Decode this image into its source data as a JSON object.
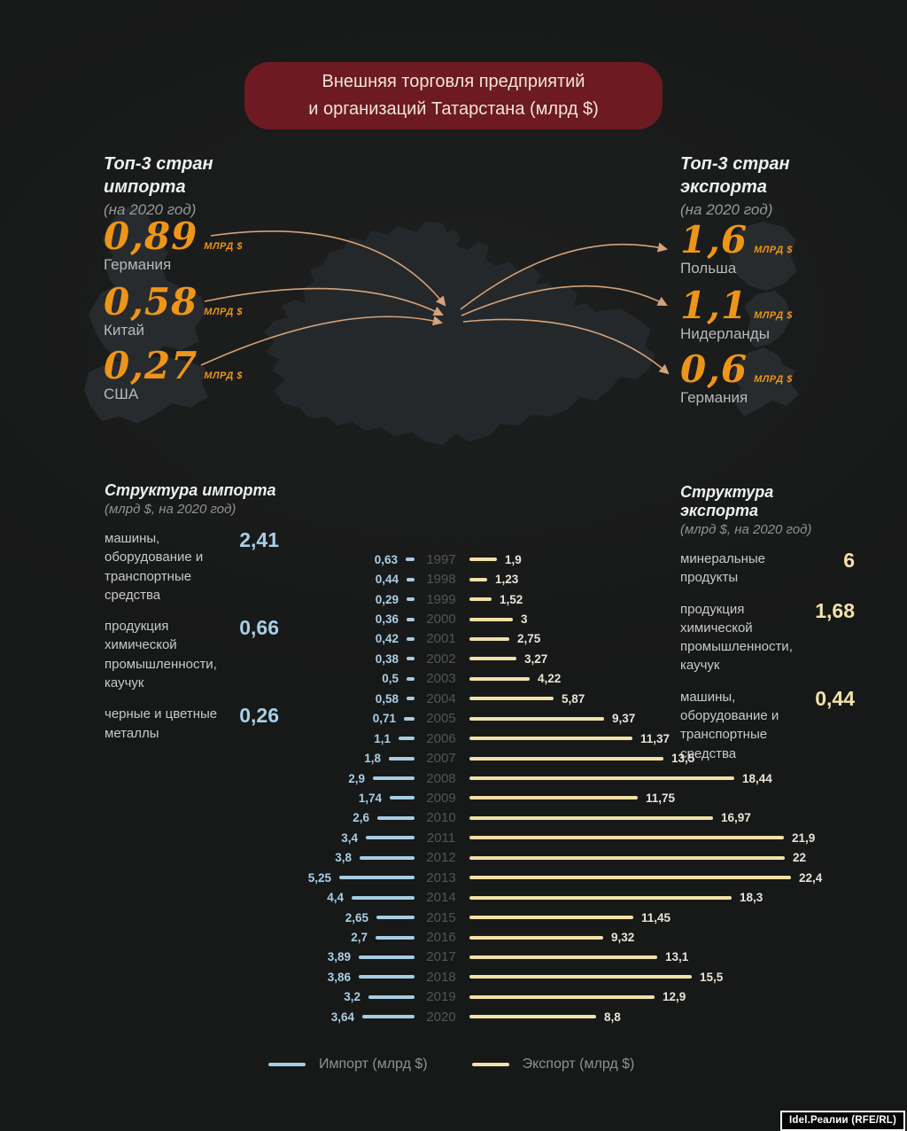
{
  "title": {
    "line1": "Внешняя торговля предприятий",
    "line2": "и организаций Татарстана (млрд $)"
  },
  "colors": {
    "background": "#1a1b1b",
    "banner": "#6d1a23",
    "accent_orange": "#ee9517",
    "arc": "#d4a27b",
    "import_blue": "#a5cde4",
    "export_yellow": "#f1e1a5",
    "map_fill": "#24282a"
  },
  "top_import": {
    "heading_line1": "Топ-3 стран",
    "heading_line2": "импорта",
    "subheading": "(на 2020 год)",
    "items": [
      {
        "value": "0,89",
        "unit": "млрд $",
        "country": "Германия"
      },
      {
        "value": "0,58",
        "unit": "млрд $",
        "country": "Китай"
      },
      {
        "value": "0,27",
        "unit": "млрд $",
        "country": "США"
      }
    ]
  },
  "top_export": {
    "heading_line1": "Топ-3 стран",
    "heading_line2": "экспорта",
    "subheading": "(на 2020 год)",
    "items": [
      {
        "value": "1,6",
        "unit": "млрд $",
        "country": "Польша"
      },
      {
        "value": "1,1",
        "unit": "млрд $",
        "country": "Нидерланды"
      },
      {
        "value": "0,6",
        "unit": "млрд $",
        "country": "Германия"
      }
    ]
  },
  "import_structure": {
    "heading": "Структура импорта",
    "subheading": "(млрд $, на 2020 год)",
    "items": [
      {
        "label": "машины, оборудование и транспортные средства",
        "value": "2,41"
      },
      {
        "label": "продукция химической промышленности, каучук",
        "value": "0,66"
      },
      {
        "label": "черные и цветные металлы",
        "value": "0,26"
      }
    ]
  },
  "export_structure": {
    "heading": "Структура экспорта",
    "subheading": "(млрд $, на 2020 год)",
    "items": [
      {
        "label": "минеральные продукты",
        "value": "6"
      },
      {
        "label": "продукция химической промышленности, каучук",
        "value": "1,68"
      },
      {
        "label": "машины, оборудование и транспортные средства",
        "value": "0,44"
      }
    ]
  },
  "chart_data": {
    "type": "bar",
    "orientation": "horizontal-diverging",
    "title": "Внешняя торговля предприятий и организаций Татарстана (млрд $)",
    "unit": "млрд $",
    "years": [
      1997,
      1998,
      1999,
      2000,
      2001,
      2002,
      2003,
      2004,
      2005,
      2006,
      2007,
      2008,
      2009,
      2010,
      2011,
      2012,
      2013,
      2014,
      2015,
      2016,
      2017,
      2018,
      2019,
      2020
    ],
    "series": [
      {
        "name": "Импорт (млрд $)",
        "color": "#a5cde4",
        "values": [
          0.63,
          0.44,
          0.29,
          0.36,
          0.42,
          0.38,
          0.5,
          0.58,
          0.71,
          1.1,
          1.8,
          2.9,
          1.74,
          2.6,
          3.4,
          3.8,
          5.25,
          4.4,
          2.65,
          2.7,
          3.89,
          3.86,
          3.2,
          3.64
        ],
        "labels": [
          "0,63",
          "0,44",
          "0,29",
          "0,36",
          "0,42",
          "0,38",
          "0,5",
          "0,58",
          "0,71",
          "1,1",
          "1,8",
          "2,9",
          "1,74",
          "2,6",
          "3,4",
          "3,8",
          "5,25",
          "4,4",
          "2,65",
          "2,7",
          "3,89",
          "3,86",
          "3,2",
          "3,64"
        ]
      },
      {
        "name": "Экспорт (млрд $)",
        "color": "#f1e1a5",
        "values": [
          1.9,
          1.23,
          1.52,
          3,
          2.75,
          3.27,
          4.22,
          5.87,
          9.37,
          11.37,
          13.5,
          18.44,
          11.75,
          16.97,
          21.9,
          22,
          22.4,
          18.3,
          11.45,
          9.32,
          13.1,
          15.5,
          12.9,
          8.8
        ],
        "labels": [
          "1,9",
          "1,23",
          "1,52",
          "3",
          "2,75",
          "3,27",
          "4,22",
          "5,87",
          "9,37",
          "11,37",
          "13,5",
          "18,44",
          "11,75",
          "16,97",
          "21,9",
          "22",
          "22,4",
          "18,3",
          "11,45",
          "9,32",
          "13,1",
          "15,5",
          "12,9",
          "8,8"
        ]
      }
    ],
    "xlim": [
      0,
      22.4
    ],
    "grid": false,
    "legend_position": "bottom"
  },
  "legend": [
    {
      "label": "Импорт  (млрд $)",
      "color": "#a5cde4"
    },
    {
      "label": "Экспорт (млрд $)",
      "color": "#f1e1a5"
    }
  ],
  "credit": "Idel.Реалии (RFE/RL)"
}
